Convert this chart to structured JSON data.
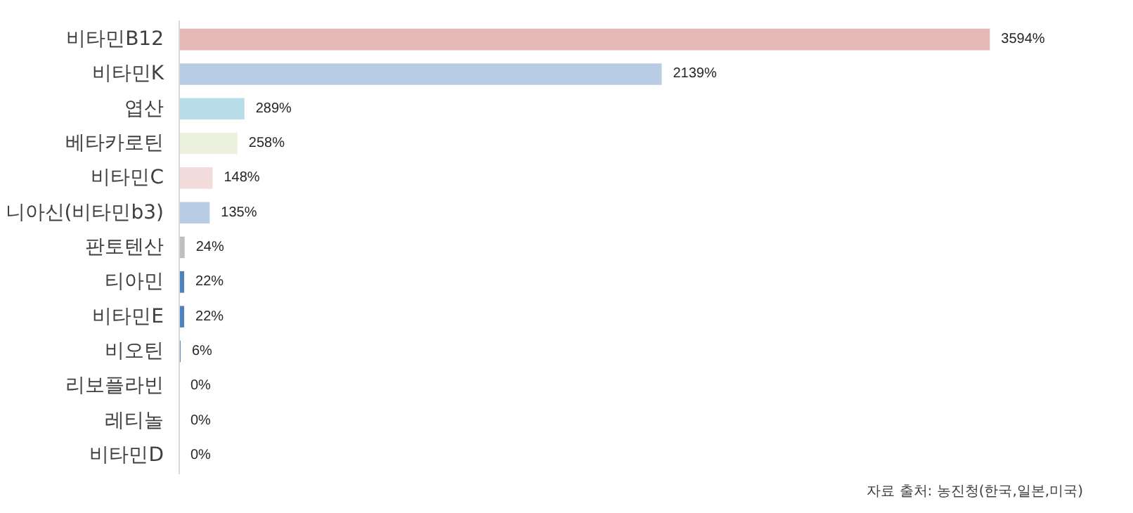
{
  "chart_data": {
    "type": "bar",
    "orientation": "horizontal",
    "categories": [
      "비타민B12",
      "비타민K",
      "엽산",
      "베타카로틴",
      "비타민C",
      "니아신(비타민b3)",
      "판토텐산",
      "티아민",
      "비타민E",
      "비오틴",
      "리보플라빈",
      "레티놀",
      "비타민D"
    ],
    "values": [
      3594,
      2139,
      289,
      258,
      148,
      135,
      24,
      22,
      22,
      6,
      0,
      0,
      0
    ],
    "value_labels": [
      "3594%",
      "2139%",
      "289%",
      "258%",
      "148%",
      "135%",
      "24%",
      "22%",
      "22%",
      "6%",
      "0%",
      "0%",
      "0%"
    ],
    "colors": [
      "#e6b8b8",
      "#b8cce4",
      "#b7dee8",
      "#ebf1de",
      "#f2dcdb",
      "#b8cce4",
      "#bfbfbf",
      "#4f81bd",
      "#4f81bd",
      "#4f81bd",
      "#4f81bd",
      "#4f81bd",
      "#4f81bd"
    ],
    "annotations": [
      "자료 출처: 농진청(한국,일본,미국)"
    ],
    "grid": false
  }
}
